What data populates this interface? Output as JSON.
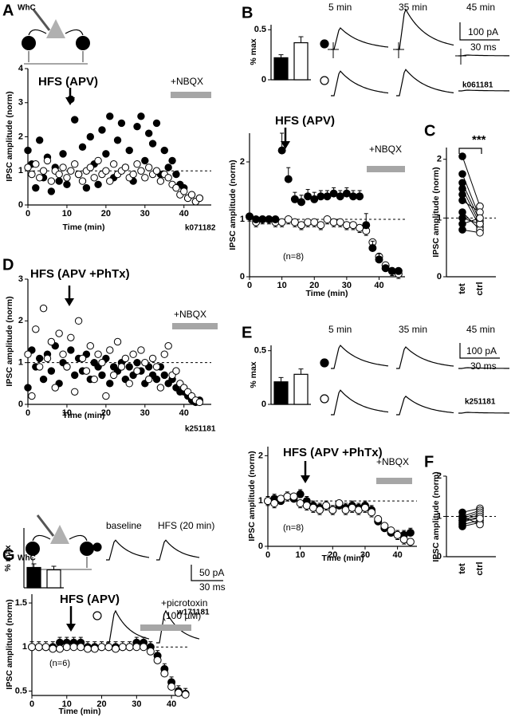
{
  "chart_data": [
    {
      "type": "scatter",
      "panel": "A",
      "xlabel": "Time (min)",
      "ylabel": "IPSC amplitude (norm)",
      "annotations": [
        "WhC",
        "HFS (APV)",
        "+NBQX",
        "k071182"
      ],
      "xlim": [
        0,
        47
      ],
      "ylim": [
        0,
        4
      ],
      "xticks": [
        0,
        10,
        20,
        30,
        40
      ],
      "yticks": [
        0,
        1,
        2,
        3,
        4
      ],
      "hline": 1,
      "x": [
        0,
        1,
        2,
        3,
        4,
        5,
        6,
        7,
        8,
        9,
        10,
        11,
        12,
        13,
        14,
        15,
        16,
        17,
        18,
        19,
        20,
        21,
        22,
        23,
        24,
        25,
        26,
        27,
        28,
        29,
        30,
        31,
        32,
        33,
        34,
        35,
        36,
        37,
        38,
        39,
        40,
        41,
        42,
        43,
        44
      ],
      "series": [
        {
          "color": "#000000",
          "values": [
            1.6,
            1.2,
            0.5,
            1.9,
            0.8,
            1.4,
            0.4,
            1.1,
            0.7,
            1.5,
            0.6,
            3.1,
            2.5,
            0.9,
            1.7,
            0.5,
            2.0,
            1.2,
            0.6,
            2.2,
            1.5,
            2.6,
            0.8,
            1.9,
            2.4,
            1.1,
            1.6,
            0.7,
            2.3,
            2.6,
            1.3,
            2.1,
            1.8,
            2.4,
            0.9,
            1.6,
            1.1,
            1.3,
            0.9,
            0.6,
            0.5,
            0.2,
            0.3,
            0.1,
            0.2
          ]
        },
        {
          "color": "#ffffff",
          "values": [
            1.1,
            0.9,
            1.2,
            0.8,
            1.0,
            1.3,
            0.7,
            1.0,
            0.9,
            1.1,
            0.8,
            1.0,
            1.2,
            0.9,
            0.7,
            1.0,
            1.1,
            0.8,
            1.3,
            0.9,
            1.0,
            0.7,
            1.2,
            0.9,
            1.0,
            1.1,
            0.8,
            0.9,
            1.2,
            1.0,
            0.8,
            1.1,
            0.9,
            1.0,
            0.7,
            0.9,
            0.8,
            0.6,
            0.5,
            0.3,
            0.4,
            0.2,
            0.3,
            0.1,
            0.2
          ]
        }
      ]
    },
    {
      "type": "bar",
      "panel": "B",
      "ylabel": "% max",
      "annotations": [
        "5 min",
        "35 min",
        "45 min",
        "100 pA",
        "30 ms",
        "k061181"
      ],
      "ylim": [
        0,
        0.55
      ],
      "yticks": [
        0,
        0.5
      ],
      "categories": [
        null,
        null
      ],
      "values": [
        0.22,
        0.37
      ],
      "errors": [
        0.03,
        0.06
      ],
      "colors": [
        "#000000",
        "#ffffff"
      ]
    },
    {
      "type": "line",
      "xlabel": "Time (min)",
      "ylabel": "IPSC amplitude (norm)",
      "annotations": [
        "HFS (APV)",
        "+NBQX",
        "(n=8)"
      ],
      "xlim": [
        0,
        48
      ],
      "ylim": [
        0,
        2.5
      ],
      "xticks": [
        0,
        10,
        20,
        30,
        40
      ],
      "yticks": [
        0,
        1,
        2
      ],
      "hline": 1,
      "x": [
        0,
        2,
        4,
        6,
        8,
        10,
        12,
        14,
        16,
        18,
        20,
        22,
        24,
        26,
        28,
        30,
        32,
        34,
        36,
        38,
        40,
        42,
        44,
        46
      ],
      "series": [
        {
          "color": "#ffffff",
          "values": [
            1.05,
            0.95,
            1.0,
            1.0,
            0.95,
            0.95,
            1.0,
            0.95,
            0.9,
            0.95,
            0.95,
            0.9,
            1.0,
            0.95,
            0.95,
            0.9,
            0.9,
            0.85,
            0.8,
            0.6,
            0.35,
            0.2,
            0.1,
            0.05
          ],
          "errors": [
            0.08,
            0.08,
            0.08,
            0.08,
            0.08,
            0.08,
            0.08,
            0.08,
            0.08,
            0.08,
            0.08,
            0.08,
            0.08,
            0.08,
            0.08,
            0.08,
            0.08,
            0.08,
            0.08,
            0.08,
            0.08,
            0.08,
            0.08,
            0.08
          ]
        },
        {
          "color": "#000000",
          "values": [
            1.05,
            1.0,
            1.0,
            1.0,
            1.0,
            2.2,
            1.7,
            1.35,
            1.3,
            1.4,
            1.35,
            1.4,
            1.4,
            1.45,
            1.4,
            1.45,
            1.4,
            1.4,
            0.9,
            0.5,
            0.3,
            0.15,
            0.1,
            0.1
          ],
          "errors": [
            0.05,
            0.05,
            0.05,
            0.05,
            0.05,
            0.3,
            0.2,
            0.12,
            0.12,
            0.12,
            0.12,
            0.1,
            0.1,
            0.1,
            0.1,
            0.1,
            0.1,
            0.1,
            0.2,
            0.12,
            0.1,
            0.05,
            0.05,
            0.05
          ]
        }
      ]
    },
    {
      "type": "paired",
      "panel": "C",
      "ylabel": "IPSC amplitude (norm)",
      "annotations": [
        "***"
      ],
      "ylim": [
        0,
        2.2
      ],
      "yticks": [
        0,
        1,
        2
      ],
      "hline": 1,
      "categories": [
        "tet",
        "ctrl"
      ],
      "colors": [
        "#000000",
        "#ffffff"
      ],
      "pairs": [
        [
          2.05,
          1.2
        ],
        [
          1.75,
          1.0
        ],
        [
          1.6,
          0.95
        ],
        [
          1.5,
          0.9
        ],
        [
          1.4,
          0.85
        ],
        [
          1.3,
          1.1
        ],
        [
          1.1,
          0.8
        ],
        [
          1.0,
          0.9
        ],
        [
          0.9,
          1.0
        ],
        [
          0.8,
          0.75
        ]
      ]
    },
    {
      "type": "scatter",
      "panel": "D",
      "xlabel": "Time (min)",
      "ylabel": "IPSC amplitude (norm)",
      "annotations": [
        "HFS (APV +PhTx)",
        "+NBQX",
        "k251181"
      ],
      "xlim": [
        0,
        47
      ],
      "ylim": [
        0,
        3
      ],
      "xticks": [
        0,
        10,
        20,
        30,
        40
      ],
      "yticks": [
        0,
        1,
        2,
        3
      ],
      "hline": 1,
      "x": [
        0,
        1,
        2,
        3,
        4,
        5,
        6,
        7,
        8,
        9,
        10,
        11,
        12,
        13,
        14,
        15,
        16,
        17,
        18,
        19,
        20,
        21,
        22,
        23,
        24,
        25,
        26,
        27,
        28,
        29,
        30,
        31,
        32,
        33,
        34,
        35,
        36,
        37,
        38,
        39,
        40,
        41,
        42,
        43,
        44
      ],
      "series": [
        {
          "color": "#000000",
          "values": [
            0.4,
            1.3,
            0.9,
            1.1,
            0.6,
            1.2,
            0.8,
            1.4,
            0.5,
            1.0,
            0.9,
            1.3,
            0.7,
            1.1,
            0.8,
            1.2,
            0.6,
            1.0,
            0.9,
            0.7,
            1.1,
            0.5,
            0.9,
            0.8,
            1.0,
            0.6,
            0.9,
            0.7,
            1.0,
            0.8,
            0.5,
            0.9,
            0.7,
            0.6,
            0.9,
            0.7,
            0.5,
            0.6,
            0.4,
            0.3,
            0.3,
            0.2,
            0.1,
            0.05,
            0.1
          ]
        },
        {
          "color": "#ffffff",
          "values": [
            1.2,
            0.2,
            1.8,
            0.9,
            2.3,
            1.1,
            1.5,
            0.4,
            1.7,
            1.2,
            0.9,
            1.6,
            0.3,
            2.0,
            1.1,
            0.8,
            1.4,
            0.6,
            1.2,
            1.0,
            0.2,
            1.3,
            0.7,
            1.5,
            0.9,
            1.1,
            0.5,
            1.2,
            0.8,
            1.3,
            1.0,
            0.6,
            1.1,
            0.9,
            0.4,
            1.2,
            1.4,
            0.7,
            0.8,
            0.5,
            0.4,
            0.3,
            0.2,
            0.1,
            0.05
          ]
        }
      ]
    },
    {
      "type": "bar",
      "panel": "E",
      "ylabel": "% max",
      "annotations": [
        "5 min",
        "35 min",
        "45 min",
        "100 pA",
        "30 ms",
        "k251181"
      ],
      "ylim": [
        0,
        0.55
      ],
      "yticks": [
        0,
        0.5
      ],
      "categories": [
        null,
        null
      ],
      "values": [
        0.21,
        0.28
      ],
      "errors": [
        0.04,
        0.05
      ],
      "colors": [
        "#000000",
        "#ffffff"
      ]
    },
    {
      "type": "line",
      "xlabel": "Time (min)",
      "ylabel": "IPSC amplitude (norm)",
      "annotations": [
        "HFS (APV +PhTx)",
        "+NBQX",
        "(n=8)"
      ],
      "xlim": [
        0,
        46
      ],
      "ylim": [
        0,
        2.2
      ],
      "xticks": [
        0,
        10,
        20,
        30,
        40
      ],
      "yticks": [
        0,
        1,
        2
      ],
      "hline": 1,
      "x": [
        0,
        2,
        4,
        6,
        8,
        10,
        12,
        14,
        16,
        18,
        20,
        22,
        24,
        26,
        28,
        30,
        32,
        34,
        36,
        38,
        40,
        42,
        44
      ],
      "series": [
        {
          "color": "#000000",
          "values": [
            1.0,
            1.05,
            1.0,
            1.1,
            1.05,
            1.15,
            1.0,
            0.9,
            0.85,
            0.9,
            0.8,
            0.9,
            0.85,
            0.9,
            0.85,
            0.9,
            0.8,
            0.55,
            0.4,
            0.3,
            0.25,
            0.25,
            0.3
          ],
          "errors": [
            0.1,
            0.1,
            0.1,
            0.1,
            0.1,
            0.1,
            0.1,
            0.1,
            0.1,
            0.1,
            0.1,
            0.1,
            0.1,
            0.1,
            0.1,
            0.1,
            0.1,
            0.1,
            0.1,
            0.1,
            0.1,
            0.1,
            0.1
          ]
        },
        {
          "color": "#ffffff",
          "values": [
            1.0,
            0.95,
            1.05,
            1.1,
            1.1,
            0.95,
            0.9,
            0.85,
            0.8,
            0.9,
            0.8,
            0.95,
            0.8,
            0.85,
            0.8,
            0.85,
            0.75,
            0.6,
            0.45,
            0.35,
            0.25,
            0.15,
            0.1
          ],
          "errors": [
            0.1,
            0.1,
            0.1,
            0.1,
            0.1,
            0.1,
            0.1,
            0.1,
            0.1,
            0.1,
            0.1,
            0.1,
            0.1,
            0.1,
            0.1,
            0.1,
            0.1,
            0.1,
            0.1,
            0.1,
            0.1,
            0.1,
            0.1
          ]
        }
      ]
    },
    {
      "type": "paired",
      "panel": "F",
      "ylabel": "IPSC amplitude (norm)",
      "ylim": [
        0,
        2
      ],
      "yticks": [
        0,
        1,
        2
      ],
      "hline": 1,
      "categories": [
        "tet",
        "ctrl"
      ],
      "colors": [
        "#000000",
        "#ffffff"
      ],
      "pairs": [
        [
          1.1,
          1.2
        ],
        [
          1.0,
          1.15
        ],
        [
          0.95,
          1.1
        ],
        [
          0.9,
          1.05
        ],
        [
          0.85,
          1.0
        ],
        [
          0.8,
          0.9
        ],
        [
          0.75,
          0.85
        ],
        [
          1.0,
          0.8
        ],
        [
          0.9,
          0.95
        ]
      ]
    },
    {
      "type": "bar",
      "panel": "G",
      "ylabel": "% max",
      "annotations": [
        "WhC",
        "baseline",
        "HFS (20 min)",
        "50 pA",
        "30 ms",
        "w171181"
      ],
      "ylim": [
        0,
        0.5
      ],
      "categories": [
        null,
        null
      ],
      "values": [
        0.17,
        0.15
      ],
      "errors": [
        0.03,
        0.03
      ],
      "colors": [
        "#000000",
        "#ffffff"
      ]
    },
    {
      "type": "line",
      "xlabel": "Time (min)",
      "ylabel": "IPSC amplitude (norm)",
      "annotations": [
        "HFS (APV)",
        "+picrotoxin",
        "(100 µM)",
        "(n=6)"
      ],
      "xlim": [
        0,
        45
      ],
      "ylim": [
        0.45,
        1.6
      ],
      "xticks": [
        0,
        10,
        20,
        30,
        40
      ],
      "yticks": [
        0.5,
        1,
        1.5
      ],
      "hline": 1,
      "x": [
        0,
        2,
        4,
        6,
        8,
        10,
        12,
        14,
        16,
        18,
        20,
        22,
        24,
        26,
        28,
        30,
        32,
        34,
        36,
        38,
        40,
        42,
        44
      ],
      "series": [
        {
          "color": "#000000",
          "values": [
            1.0,
            1.0,
            1.0,
            1.0,
            1.05,
            1.05,
            1.05,
            1.05,
            1.0,
            1.0,
            1.0,
            1.0,
            1.0,
            1.0,
            1.0,
            1.05,
            1.05,
            1.0,
            0.9,
            0.75,
            0.6,
            0.5,
            0.47
          ],
          "errors": [
            0.06,
            0.06,
            0.06,
            0.06,
            0.06,
            0.06,
            0.06,
            0.06,
            0.06,
            0.06,
            0.06,
            0.06,
            0.06,
            0.06,
            0.06,
            0.06,
            0.06,
            0.06,
            0.06,
            0.06,
            0.06,
            0.06,
            0.06
          ]
        },
        {
          "color": "#ffffff",
          "values": [
            1.0,
            1.0,
            1.0,
            0.98,
            0.98,
            1.0,
            1.0,
            1.0,
            0.98,
            0.98,
            1.0,
            1.0,
            0.98,
            1.0,
            1.0,
            1.0,
            1.0,
            0.95,
            0.85,
            0.7,
            0.55,
            0.48,
            0.46
          ]
        }
      ]
    }
  ]
}
